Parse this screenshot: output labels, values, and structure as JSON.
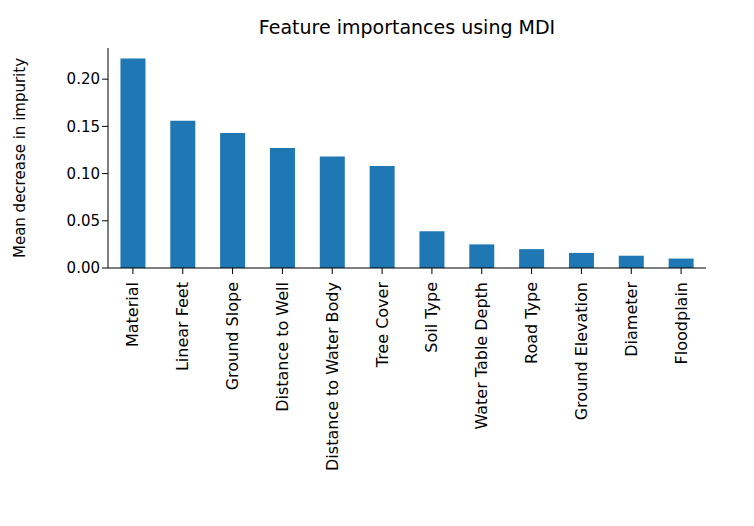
{
  "chart_data": {
    "type": "bar",
    "title": "Feature importances using MDI",
    "y_label": "Mean decrease in impurity",
    "categories": [
      "Material",
      "Linear Feet",
      "Ground Slope",
      "Distance to Well",
      "Distance to Water Body",
      "Tree Cover",
      "Soil Type",
      "Water Table Depth",
      "Road Type",
      "Ground Elevation",
      "Diameter",
      "Floodplain"
    ],
    "values": [
      0.222,
      0.156,
      0.143,
      0.127,
      0.118,
      0.108,
      0.039,
      0.025,
      0.02,
      0.016,
      0.013,
      0.01
    ],
    "color": "#1f77b4",
    "ylim": [
      0,
      0.233
    ],
    "yticks": [
      {
        "value": 0,
        "label": "0.00"
      },
      {
        "value": 0.05,
        "label": "0.05"
      },
      {
        "value": 0.1,
        "label": "0.10"
      },
      {
        "value": 0.15,
        "label": "0.15"
      },
      {
        "value": 0.2,
        "label": "0.20"
      }
    ],
    "grid": false
  }
}
